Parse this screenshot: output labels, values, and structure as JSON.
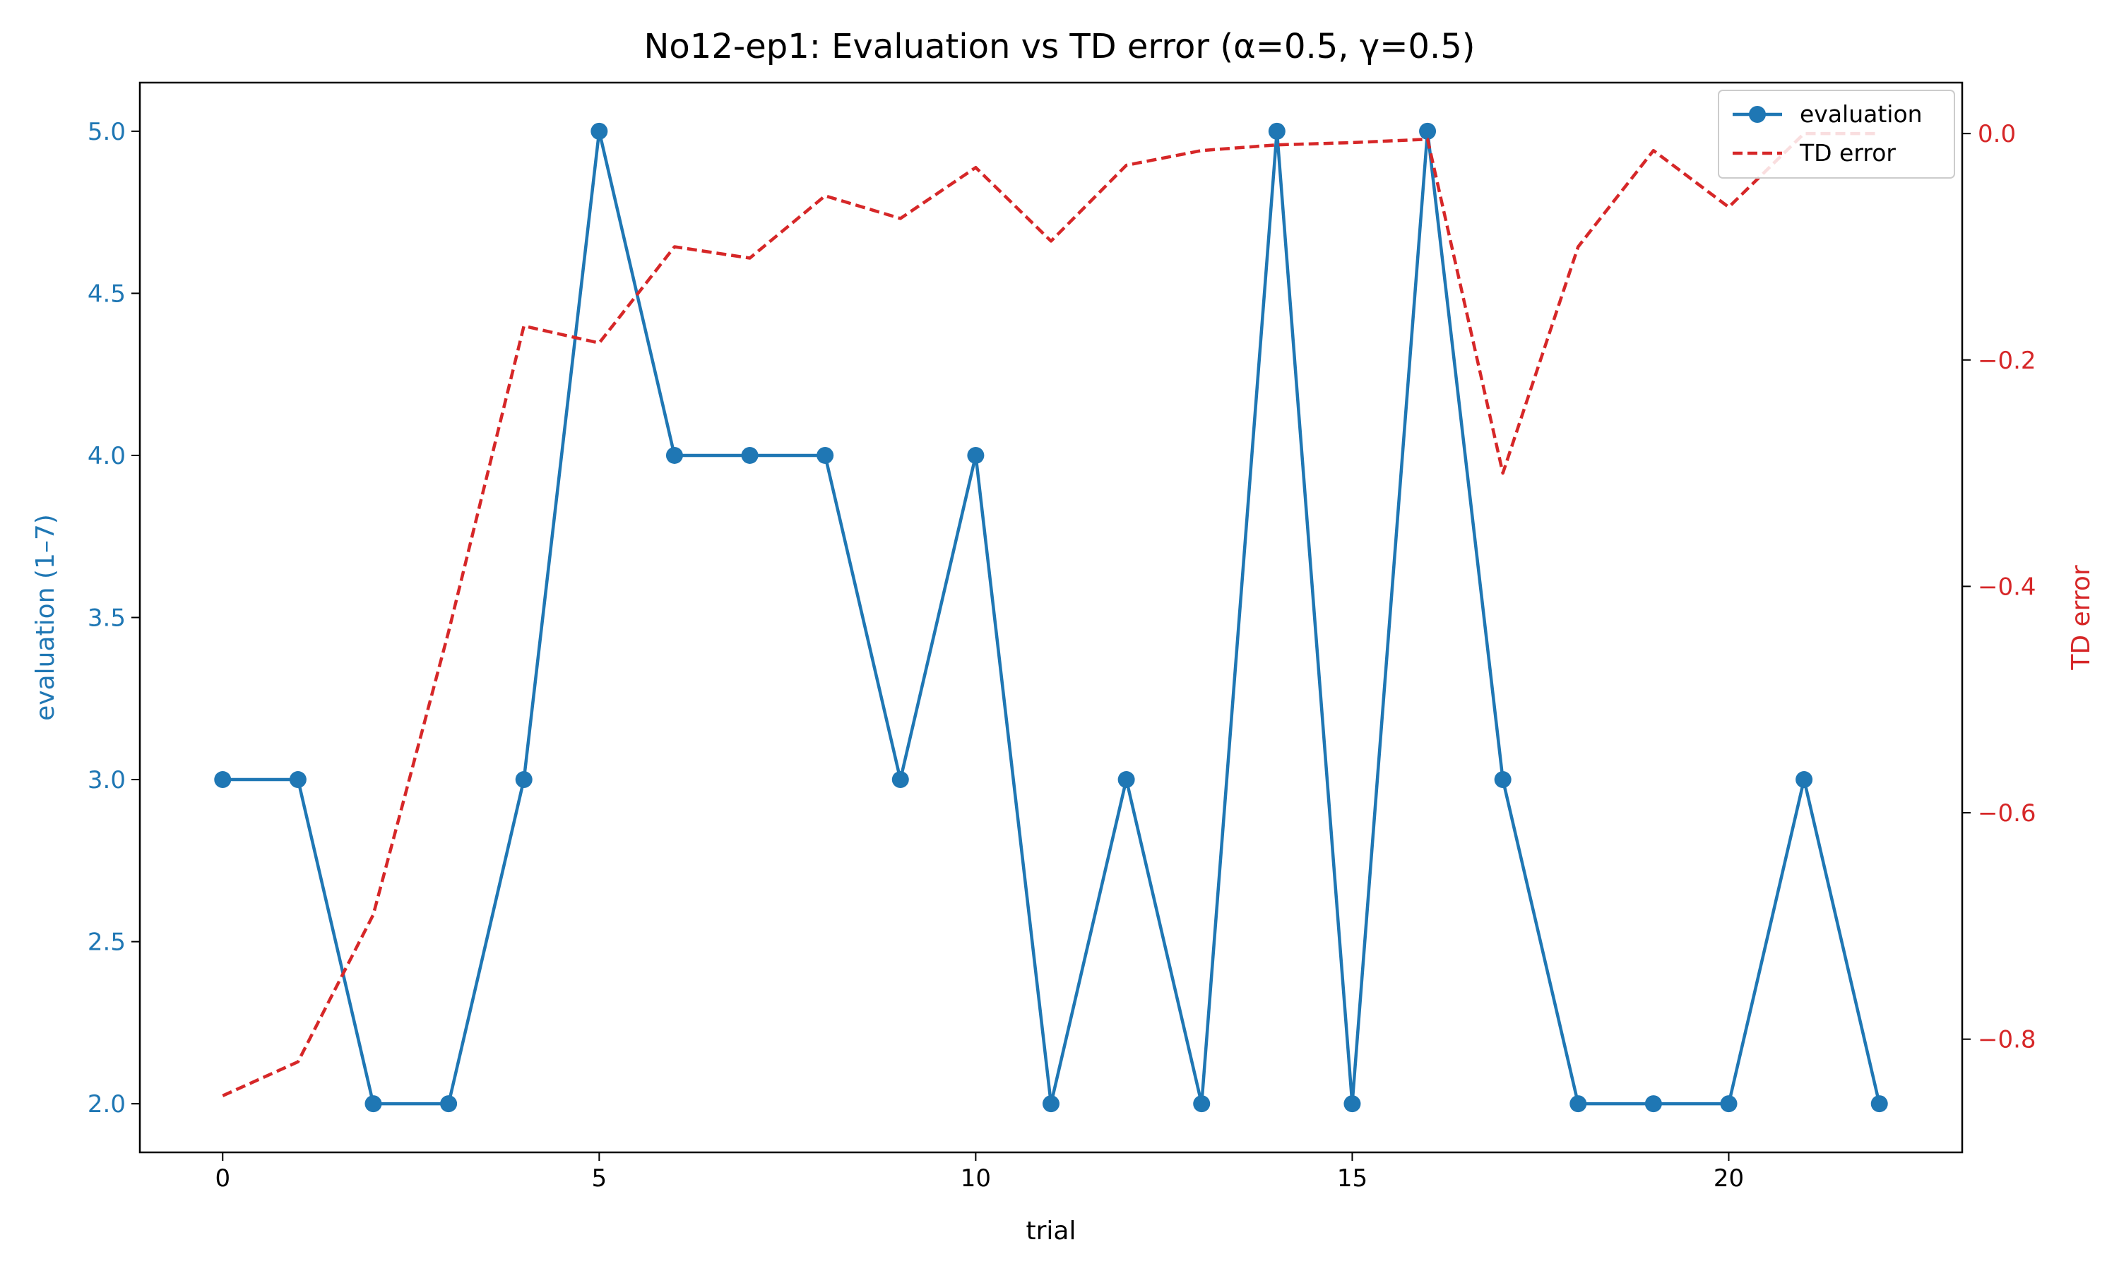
{
  "chart_data": {
    "type": "line",
    "title": "No12-ep1: Evaluation vs TD error (α=0.5, γ=0.5)",
    "xlabel": "trial",
    "ylabel": "evaluation (1–7)",
    "y2label": "TD error",
    "xlim": [
      -1.1,
      23.1
    ],
    "ylim": [
      1.85,
      5.15
    ],
    "y2lim": [
      -0.9,
      0.045
    ],
    "x_ticks": [
      0,
      5,
      10,
      15,
      20
    ],
    "x_tick_labels": [
      "0",
      "5",
      "10",
      "15",
      "20"
    ],
    "y_ticks": [
      2.0,
      2.5,
      3.0,
      3.5,
      4.0,
      4.5,
      5.0
    ],
    "y_tick_labels": [
      "2.0",
      "2.5",
      "3.0",
      "3.5",
      "4.0",
      "4.5",
      "5.0"
    ],
    "y2_ticks": [
      0.0,
      -0.2,
      -0.4,
      -0.6,
      -0.8
    ],
    "y2_tick_labels": [
      "0.0",
      "−0.2",
      "−0.4",
      "−0.6",
      "−0.8"
    ],
    "x": [
      0,
      1,
      2,
      3,
      4,
      5,
      6,
      7,
      8,
      9,
      10,
      11,
      12,
      13,
      14,
      15,
      16,
      17,
      18,
      19,
      20,
      21,
      22
    ],
    "series": [
      {
        "name": "evaluation",
        "axis": "left",
        "color": "#1f77b4",
        "style": "solid-marker",
        "values": [
          3,
          3,
          2,
          2,
          3,
          5,
          4,
          4,
          4,
          3,
          4,
          2,
          3,
          2,
          5,
          2,
          5,
          3,
          2,
          2,
          2,
          3,
          2
        ]
      },
      {
        "name": "TD error",
        "axis": "right",
        "color": "#d62728",
        "style": "dashed",
        "values": [
          -0.85,
          -0.82,
          -0.69,
          -0.44,
          -0.17,
          -0.185,
          -0.1,
          -0.11,
          -0.055,
          -0.075,
          -0.03,
          -0.095,
          -0.028,
          -0.015,
          -0.01,
          -0.008,
          -0.005,
          -0.3,
          -0.1,
          -0.015,
          -0.065,
          0.0,
          0.0
        ]
      }
    ],
    "legend_position": "top-right",
    "grid": false
  }
}
